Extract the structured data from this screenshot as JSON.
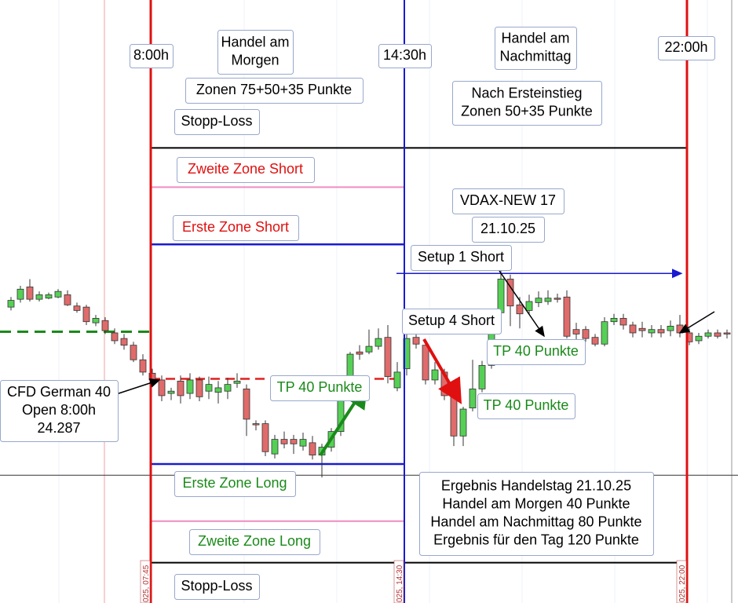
{
  "chart_data": {
    "type": "candlestick",
    "ylim": [
      24087,
      24625
    ],
    "up_color": "#55d055",
    "down_color": "#e06b6b",
    "open": [
      24351,
      24358,
      24369,
      24358,
      24359,
      24360,
      24362,
      24352,
      24351,
      24337,
      24339,
      24328,
      24323,
      24317,
      24304,
      24292,
      24286,
      24274,
      24285,
      24274,
      24286,
      24276,
      24275,
      24276,
      24283,
      24278,
      24247,
      24247,
      24220,
      24233,
      24233,
      24227,
      24230,
      24219,
      24226,
      24240,
      24269,
      24311,
      24311,
      24316,
      24324,
      24279,
      24296,
      24324,
      24317,
      24286,
      24293,
      24272,
      24236,
      24261,
      24278,
      24299,
      24346,
      24376,
      24353,
      24348,
      24355,
      24356,
      24359,
      24360,
      24331,
      24331,
      24324,
      24318,
      24338,
      24341,
      24335,
      24332,
      24328,
      24331,
      24330,
      24335,
      24328,
      24321,
      24325,
      24328,
      24328
    ],
    "high": [
      24360,
      24370,
      24376,
      24365,
      24364,
      24367,
      24366,
      24355,
      24353,
      24344,
      24342,
      24332,
      24327,
      24320,
      24309,
      24296,
      24290,
      24279,
      24290,
      24292,
      24289,
      24289,
      24285,
      24288,
      24292,
      24282,
      24250,
      24250,
      24237,
      24240,
      24237,
      24239,
      24236,
      24229,
      24243,
      24272,
      24311,
      24317,
      24331,
      24332,
      24335,
      24302,
      24327,
      24330,
      24321,
      24302,
      24296,
      24275,
      24262,
      24304,
      24303,
      24345,
      24387,
      24380,
      24360,
      24362,
      24365,
      24366,
      24363,
      24366,
      24337,
      24334,
      24327,
      24342,
      24345,
      24345,
      24338,
      24338,
      24335,
      24335,
      24339,
      24344,
      24332,
      24328,
      24331,
      24331,
      24331
    ],
    "low": [
      24348,
      24355,
      24356,
      24356,
      24358,
      24359,
      24352,
      24346,
      24335,
      24334,
      24327,
      24318,
      24313,
      24302,
      24290,
      24282,
      24267,
      24268,
      24265,
      24269,
      24267,
      24269,
      24265,
      24269,
      24279,
      24236,
      24241,
      24218,
      24216,
      24225,
      24220,
      24223,
      24215,
      24199,
      24222,
      24236,
      24267,
      24304,
      24309,
      24313,
      24283,
      24276,
      24290,
      24314,
      24282,
      24282,
      24268,
      24227,
      24227,
      24258,
      24275,
      24296,
      24342,
      24334,
      24332,
      24344,
      24351,
      24353,
      24355,
      24323,
      24317,
      24320,
      24316,
      24316,
      24335,
      24331,
      24324,
      24324,
      24324,
      24324,
      24325,
      24324,
      24317,
      24318,
      24323,
      24323,
      24323
    ],
    "close": [
      24357,
      24367,
      24358,
      24362,
      24362,
      24365,
      24353,
      24348,
      24338,
      24341,
      24330,
      24321,
      24317,
      24304,
      24293,
      24286,
      24272,
      24276,
      24272,
      24286,
      24271,
      24282,
      24279,
      24282,
      24285,
      24251,
      24246,
      24222,
      24233,
      24229,
      24229,
      24233,
      24219,
      24226,
      24240,
      24269,
      24309,
      24309,
      24316,
      24323,
      24289,
      24293,
      24323,
      24318,
      24286,
      24295,
      24272,
      24236,
      24260,
      24278,
      24299,
      24327,
      24376,
      24352,
      24345,
      24356,
      24359,
      24359,
      24358,
      24325,
      24327,
      24323,
      24318,
      24338,
      24341,
      24335,
      24328,
      24330,
      24331,
      24328,
      24334,
      24328,
      24320,
      24325,
      24328,
      24325,
      24327
    ],
    "levels": [
      {
        "value": 24493,
        "color": "#000000"
      },
      {
        "value": 24458,
        "color": "#f08cc0"
      },
      {
        "value": 24407,
        "color": "#1a1ad0"
      },
      {
        "value": 24287,
        "color": "#e02020"
      },
      {
        "value": 24329,
        "color": "#1a8a1a"
      },
      {
        "value": 24211,
        "color": "#1a1ad0"
      },
      {
        "value": 24160,
        "color": "#f08cc0"
      },
      {
        "value": 24123,
        "color": "#000000"
      },
      {
        "value": 24201,
        "color": "#333333"
      },
      {
        "value": 24381,
        "color": "#1a1ad0"
      }
    ],
    "annotations": [
      {
        "lines": [
          "8:00h"
        ],
        "color": "#000000"
      },
      {
        "lines": [
          "Handel am",
          "Morgen"
        ],
        "color": "#000000"
      },
      {
        "lines": [
          "14:30h"
        ],
        "color": "#000000"
      },
      {
        "lines": [
          "Handel am",
          "Nachmittag"
        ],
        "color": "#000000"
      },
      {
        "lines": [
          "22:00h"
        ],
        "color": "#000000"
      },
      {
        "lines": [
          "Zonen 75+50+35 Punkte"
        ],
        "color": "#000000"
      },
      {
        "lines": [
          "Nach Ersteinstieg",
          "Zonen 50+35 Punkte"
        ],
        "color": "#000000"
      },
      {
        "lines": [
          "Stopp-Loss"
        ],
        "color": "#000000"
      },
      {
        "lines": [
          "Zweite Zone Short"
        ],
        "color": "#e01010"
      },
      {
        "lines": [
          "VDAX-NEW 17"
        ],
        "color": "#000000"
      },
      {
        "lines": [
          "21.10.25"
        ],
        "color": "#000000"
      },
      {
        "lines": [
          "Erste Zone Short"
        ],
        "color": "#e01010"
      },
      {
        "lines": [
          "Setup 1 Short"
        ],
        "color": "#000000"
      },
      {
        "lines": [
          "Setup 4 Short"
        ],
        "color": "#000000"
      },
      {
        "lines": [
          "TP 40 Punkte"
        ],
        "color": "#1a8a1a"
      },
      {
        "lines": [
          "TP 40 Punkte"
        ],
        "color": "#1a8a1a"
      },
      {
        "lines": [
          "CFD German 40",
          "Open 8:00h",
          "24.287"
        ],
        "color": "#000000"
      },
      {
        "lines": [
          "TP 40 Punkte"
        ],
        "color": "#1a8a1a"
      },
      {
        "lines": [
          "Erste Zone Long"
        ],
        "color": "#1a8a1a"
      },
      {
        "lines": [
          "Ergebnis Handelstag 21.10.25",
          "Handel am Morgen 40 Punkte",
          "Handel am Nachmittag 80 Punkte",
          "Ergebnis für den Tag 120  Punkte"
        ],
        "color": "#000000"
      },
      {
        "lines": [
          "Zweite Zone Long"
        ],
        "color": "#1a8a1a"
      },
      {
        "lines": [
          "Stopp-Loss"
        ],
        "color": "#000000"
      }
    ],
    "time_labels": [
      "025, 07:45",
      "025, 14:30",
      "025, 22:00"
    ]
  }
}
